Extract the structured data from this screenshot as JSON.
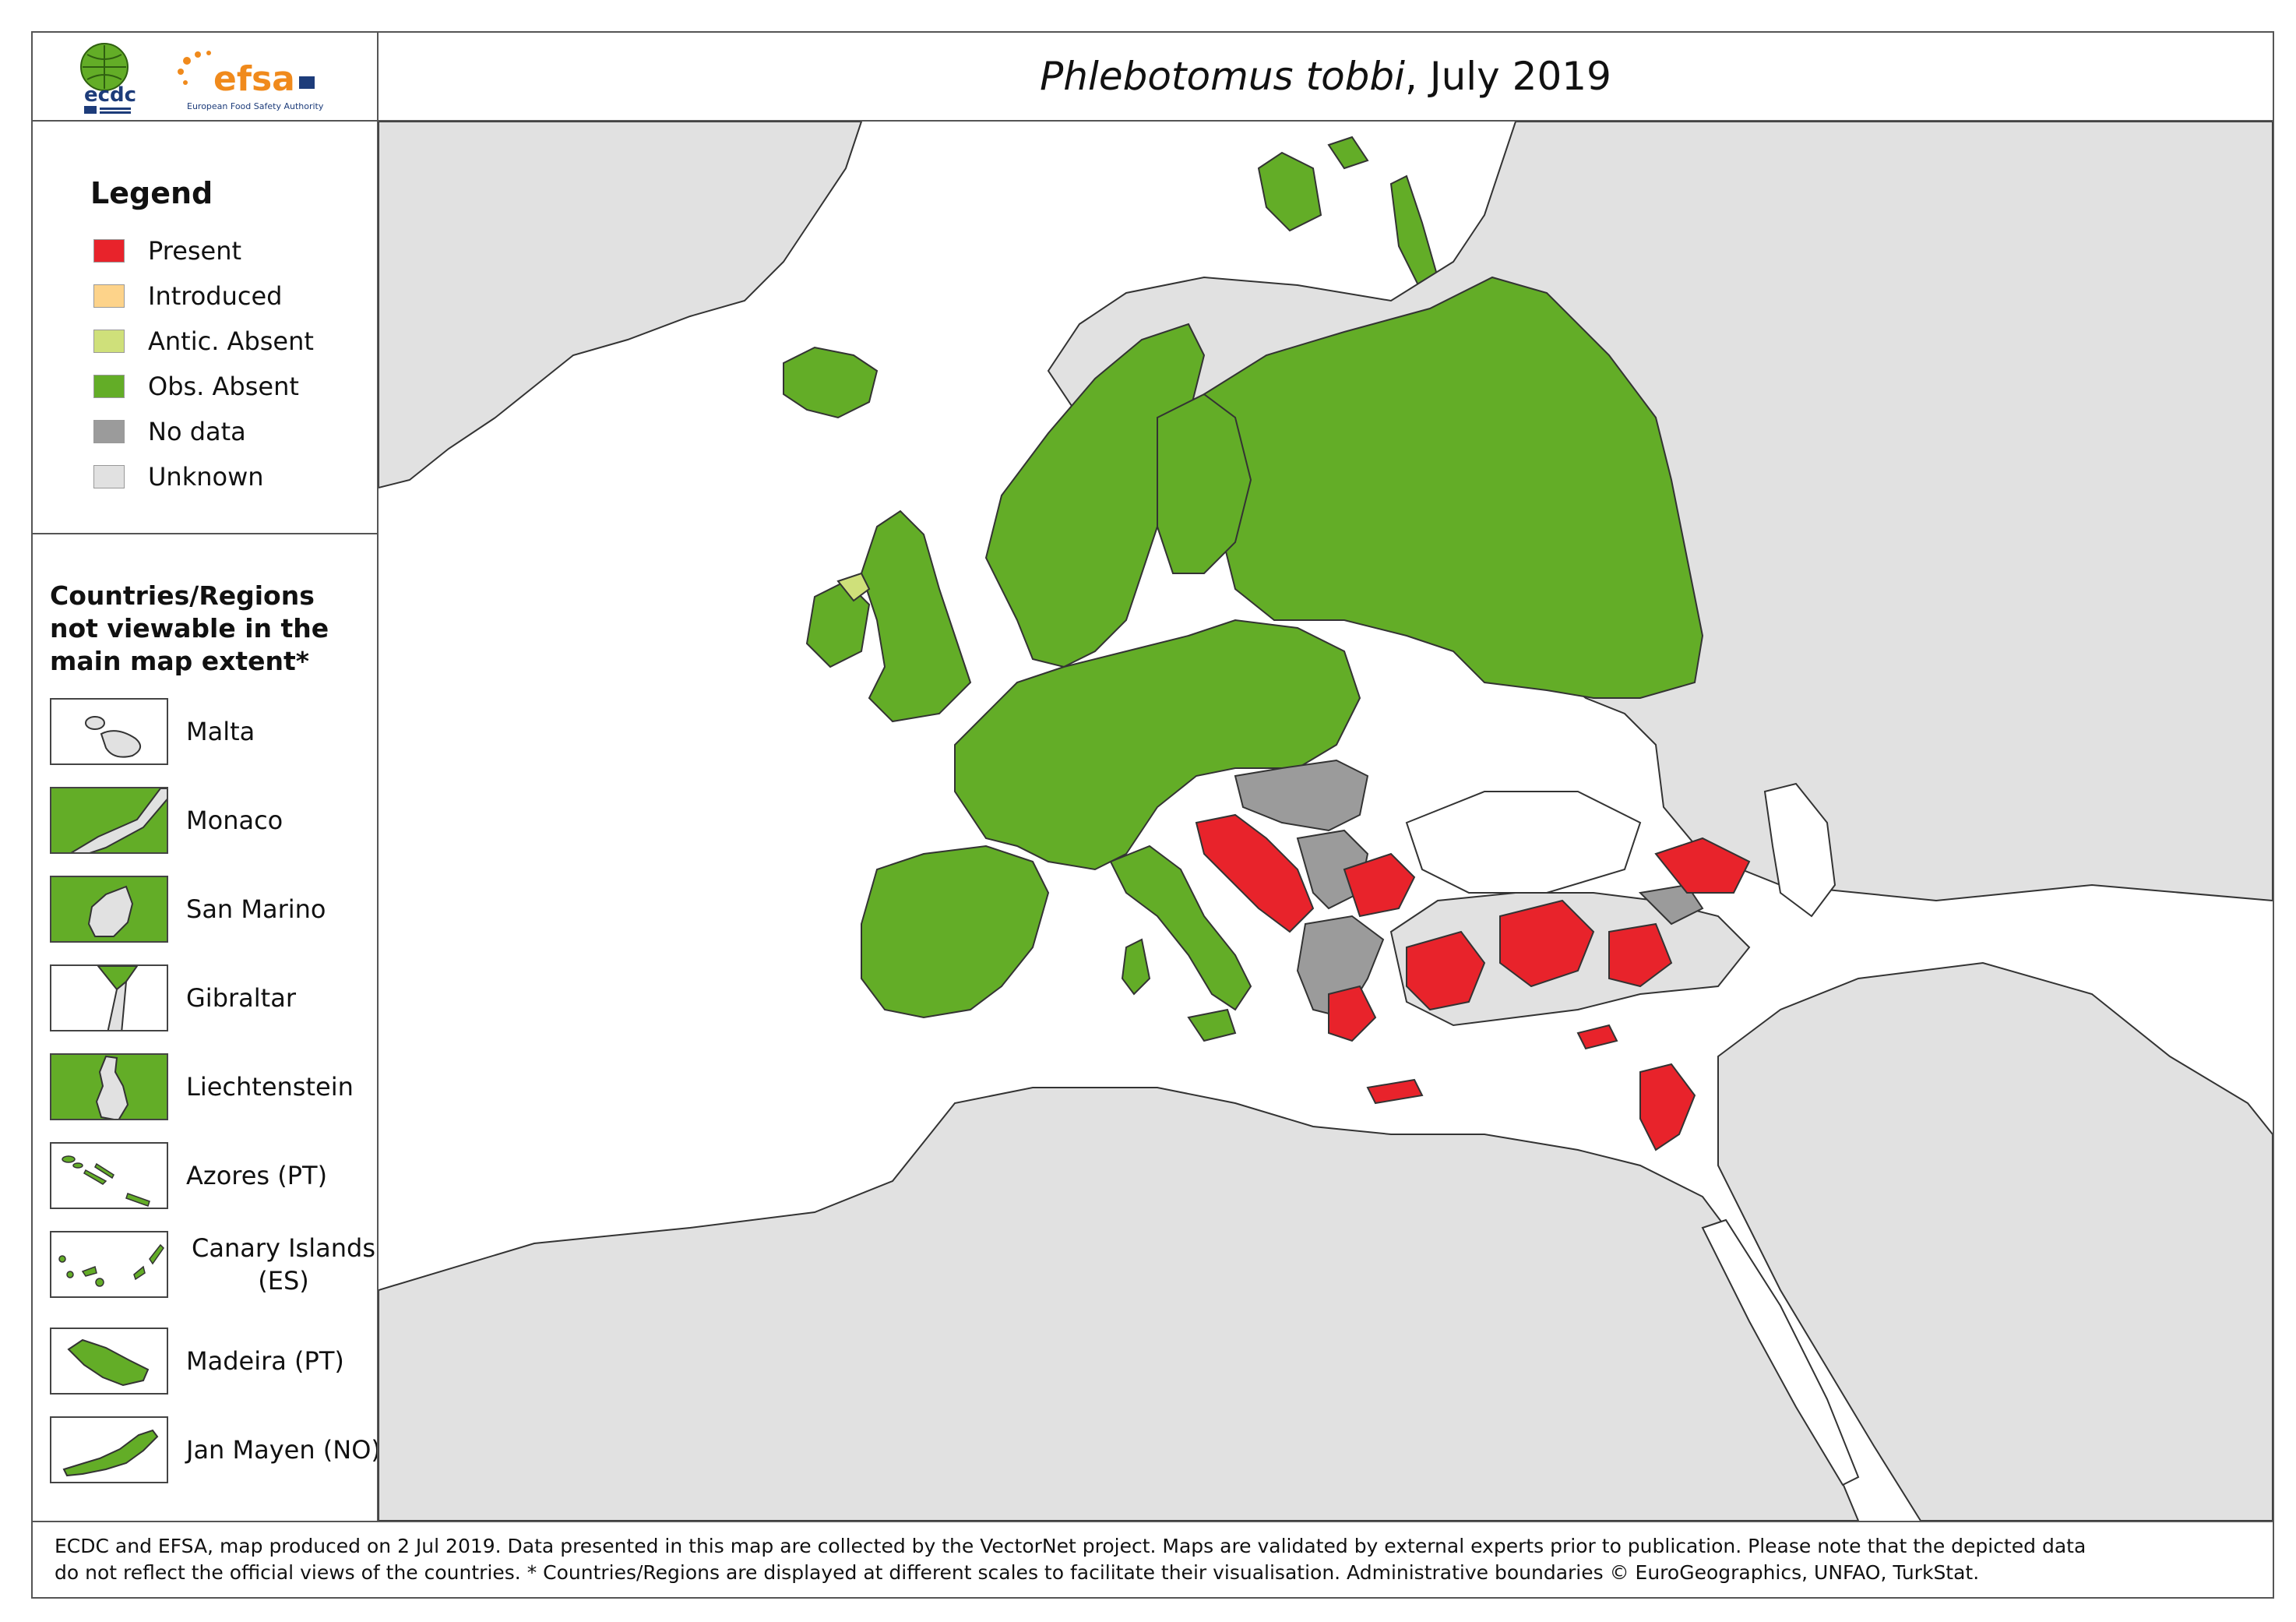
{
  "header": {
    "title_species": "Phlebotomus tobbi",
    "title_date": ", July 2019",
    "logo_ecdc": "ecdc",
    "logo_efsa": "efsa",
    "logo_efsa_subtitle": "European Food Safety Authority"
  },
  "legend": {
    "title": "Legend",
    "items": [
      {
        "label": "Present",
        "color": "#e8232b"
      },
      {
        "label": "Introduced",
        "color": "#fdd38a"
      },
      {
        "label": "Antic. Absent",
        "color": "#cfe07a"
      },
      {
        "label": "Obs. Absent",
        "color": "#63ad27"
      },
      {
        "label": "No data",
        "color": "#9b9b9b"
      },
      {
        "label": "Unknown",
        "color": "#e1e1e1"
      }
    ]
  },
  "insets": {
    "heading_lines": [
      "Countries/Regions",
      "not viewable in the",
      "main map extent*"
    ],
    "items": [
      {
        "label": "Malta"
      },
      {
        "label": "Monaco"
      },
      {
        "label": "San Marino"
      },
      {
        "label": "Gibraltar"
      },
      {
        "label": "Liechtenstein"
      },
      {
        "label": "Azores (PT)"
      },
      {
        "label": "Canary Islands (ES)"
      },
      {
        "label": "Madeira (PT)"
      },
      {
        "label": "Jan Mayen (NO)"
      }
    ]
  },
  "colors": {
    "present": "#e8232b",
    "obs_absent": "#63ad27",
    "antic_absent": "#cfe07a",
    "introduced": "#fdd38a",
    "no_data": "#9b9b9b",
    "unknown": "#e1e1e1",
    "sea": "#ffffff",
    "border": "#333333"
  },
  "footer": {
    "line1": "ECDC and EFSA, map produced on 2 Jul 2019. Data presented in this map are collected by the VectorNet project. Maps are validated by external experts prior to publication. Please note that the depicted data",
    "line2": "do not reflect the official views of the countries. * Countries/Regions are displayed at different scales to facilitate their visualisation. Administrative boundaries © EuroGeographics, UNFAO, TurkStat."
  }
}
